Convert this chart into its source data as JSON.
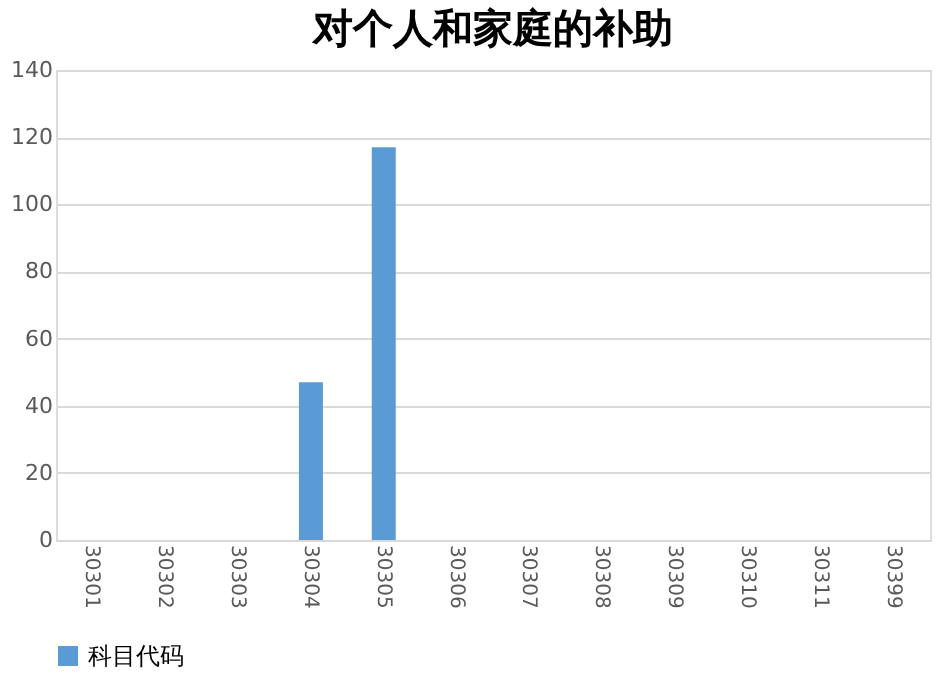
{
  "chart_data": {
    "type": "bar",
    "title": "对个人和家庭的补助",
    "categories": [
      "30301",
      "30302",
      "30303",
      "30304",
      "30305",
      "30306",
      "30307",
      "30308",
      "30309",
      "30310",
      "30311",
      "30399"
    ],
    "series": [
      {
        "name": "科目代码",
        "color": "#5b9bd5",
        "values": [
          0,
          0,
          0,
          47,
          117,
          0,
          0,
          0,
          0,
          0,
          0,
          0
        ]
      }
    ],
    "ylim": [
      0,
      140
    ],
    "yticks": [
      0,
      20,
      40,
      60,
      80,
      100,
      120,
      140
    ],
    "grid": "y",
    "legend": "bottom"
  }
}
